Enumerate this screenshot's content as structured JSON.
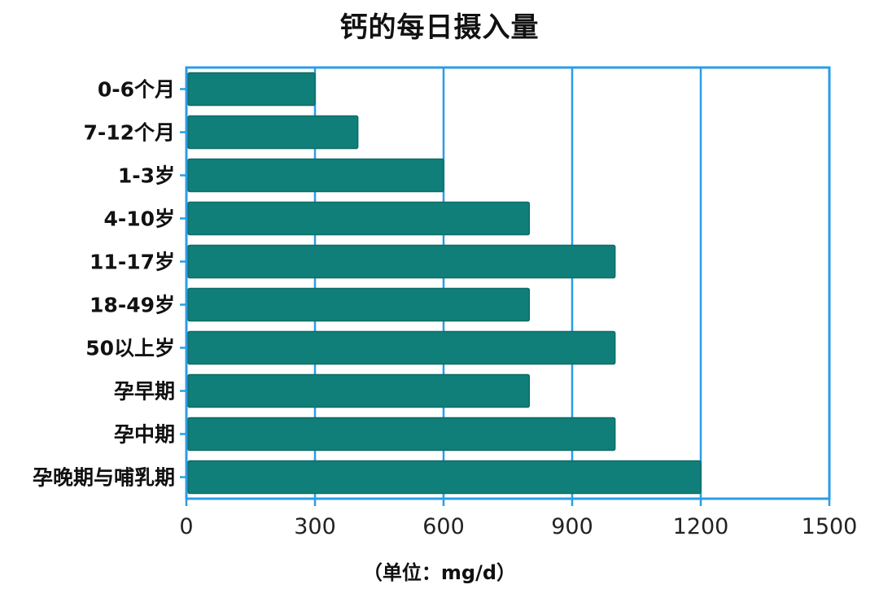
{
  "chart_data": {
    "type": "bar",
    "orientation": "horizontal",
    "title": "钙的每日摄入量",
    "xlabel": "（单位：mg/d）",
    "ylabel": "",
    "categories": [
      "0-6个月",
      "7-12个月",
      "1-3岁",
      "4-10岁",
      "11-17岁",
      "18-49岁",
      "50以上岁",
      "孕早期",
      "孕中期",
      "孕晚期与哺乳期"
    ],
    "values": [
      300,
      400,
      600,
      800,
      1000,
      800,
      1000,
      800,
      1000,
      1200
    ],
    "xlim": [
      0,
      1500
    ],
    "xticks": [
      "0",
      "300",
      "600",
      "900",
      "1200",
      "1500"
    ],
    "grid": "vertical",
    "bar_color": "#117f79",
    "frame_color": "#2b9de6"
  }
}
